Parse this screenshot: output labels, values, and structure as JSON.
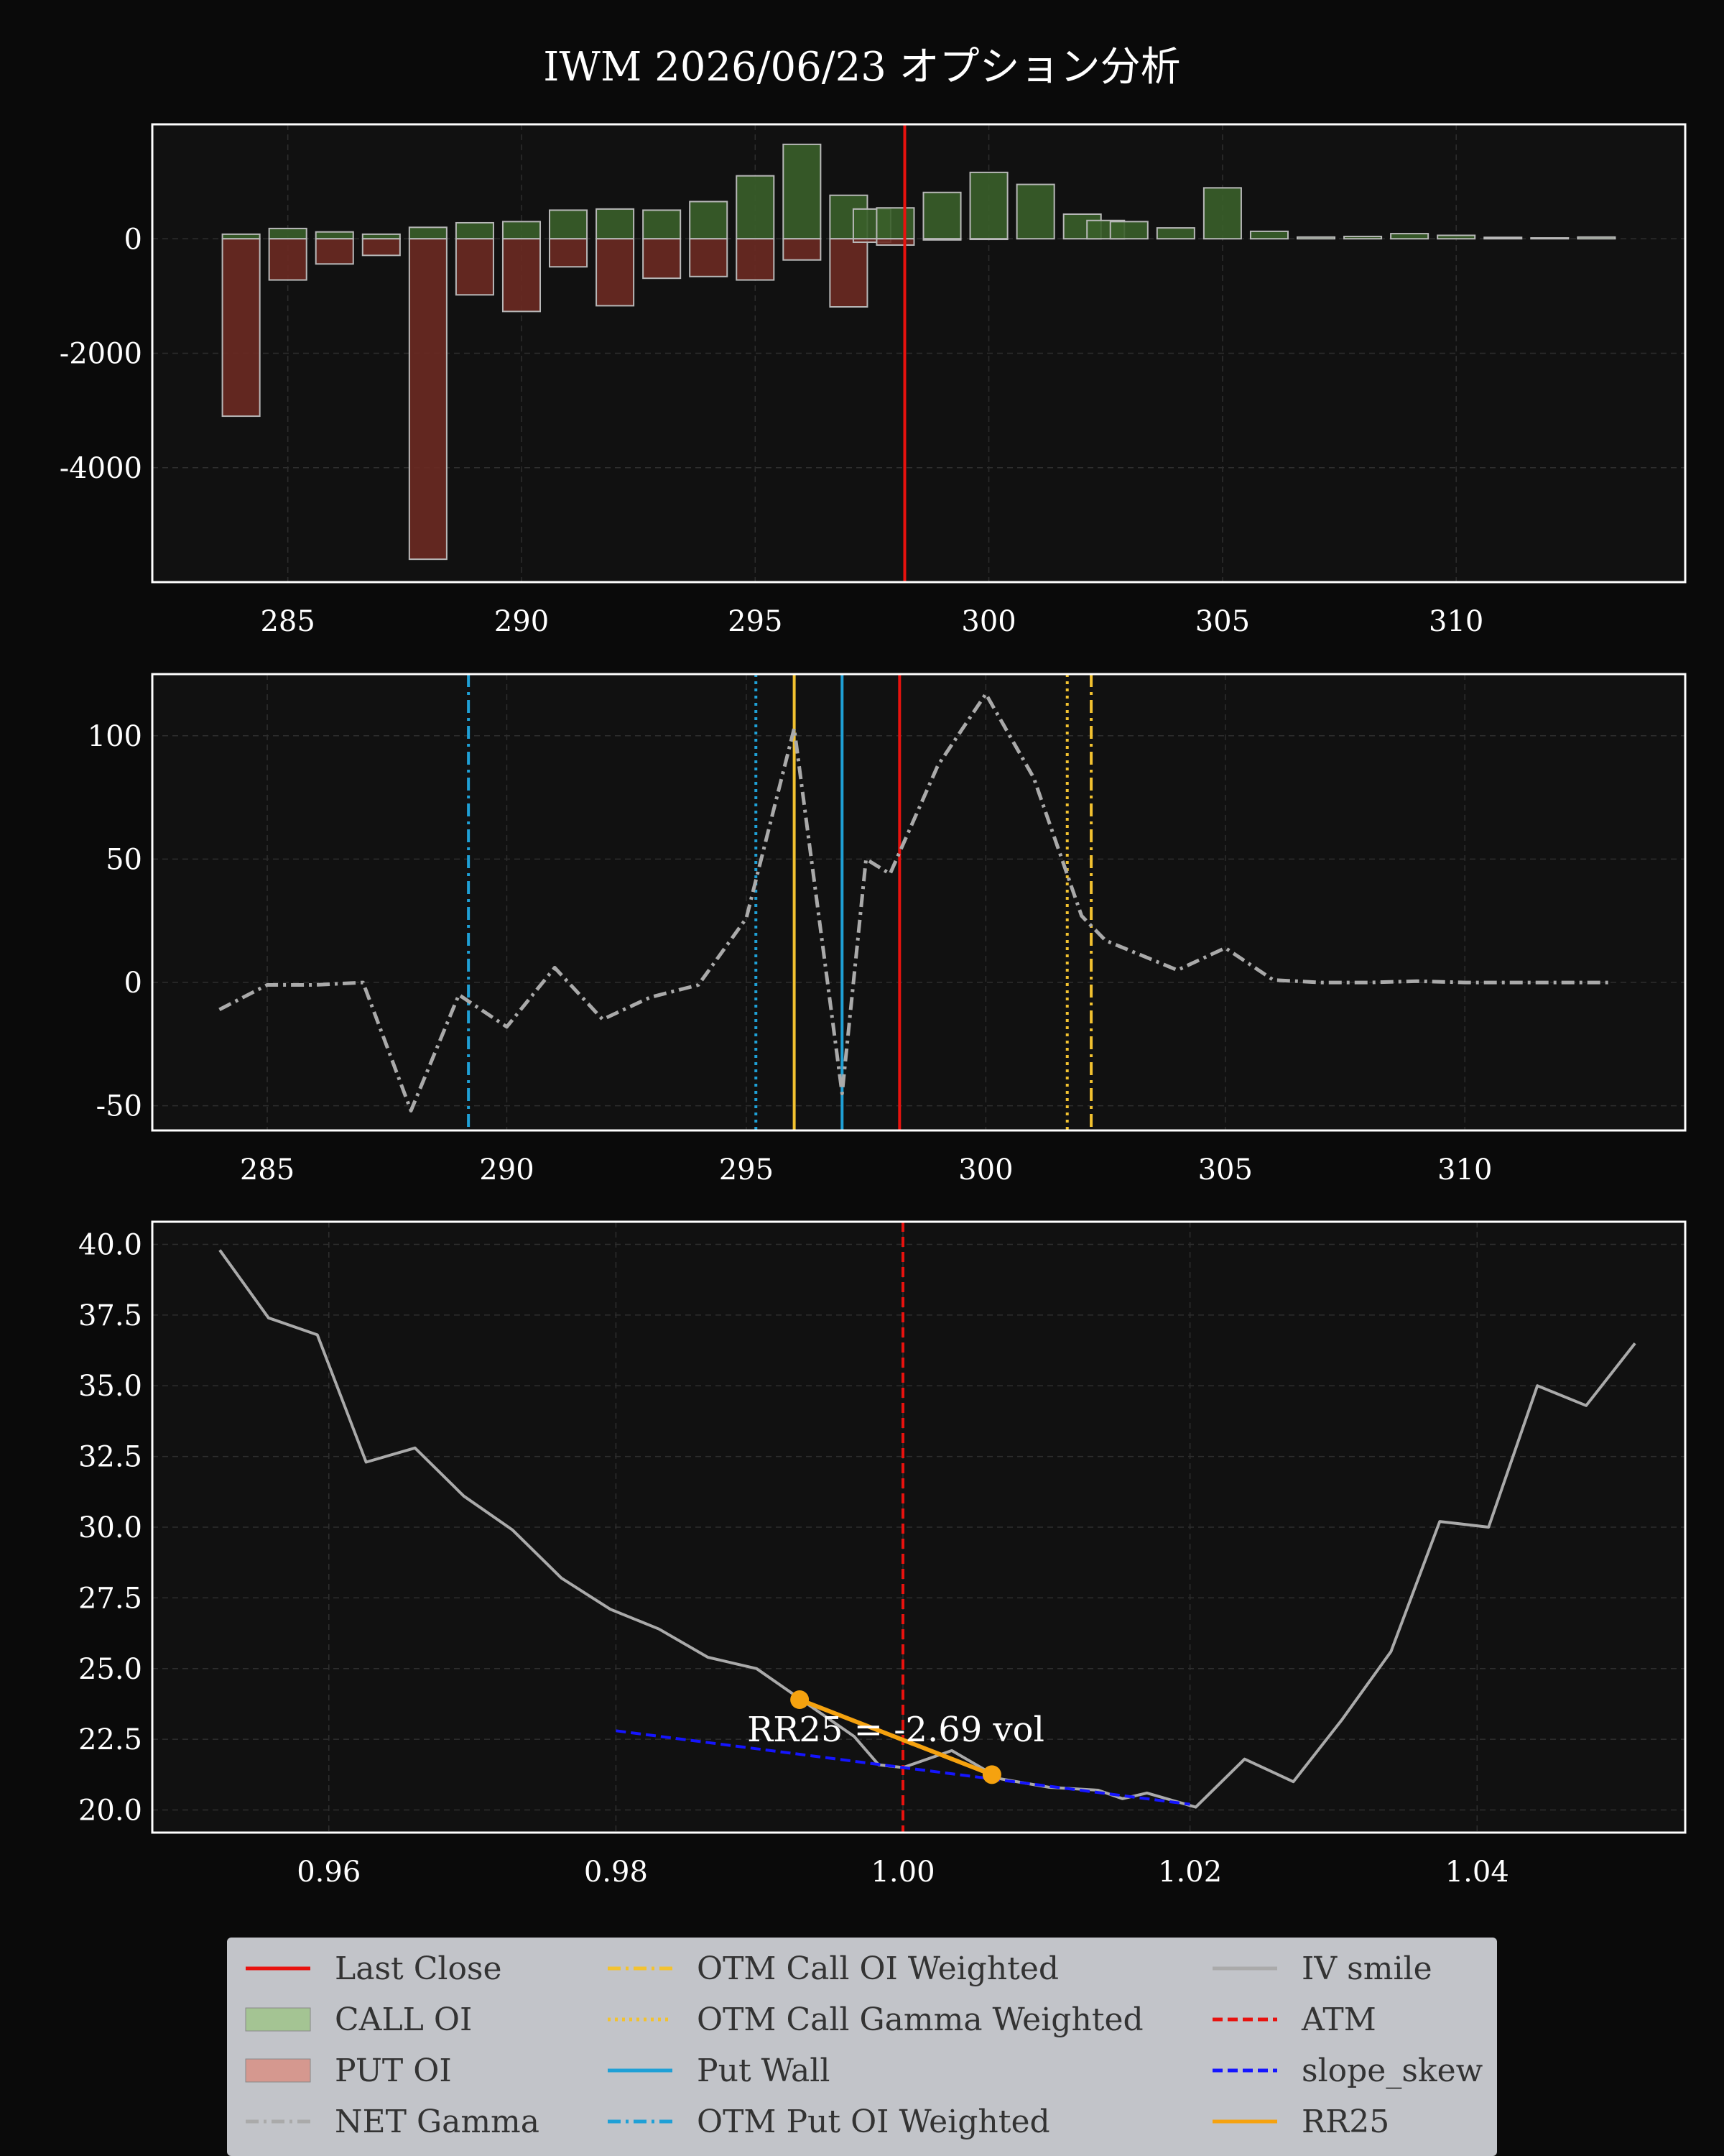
{
  "title": "IWM 2026/06/23 オプション分析",
  "colors": {
    "background": "#0a0a0a",
    "panel": "#111111",
    "call": "#3a5f2a",
    "put": "#6b2a22",
    "last_close": "#e8120e",
    "otm_call": "#f2c230",
    "put_wall": "#1fa0d6",
    "gamma": "#aaaaaa",
    "iv": "#aaaaaa",
    "atm": "#e8120e",
    "slope": "#1515ff",
    "rr25": "#f5a20f"
  },
  "legend": [
    {
      "label": "Last Close",
      "style": "solid",
      "color": "#e8120e"
    },
    {
      "label": "CALL OI",
      "style": "patch",
      "color": "#a4c493"
    },
    {
      "label": "PUT OI",
      "style": "patch",
      "color": "#d5988f"
    },
    {
      "label": "NET Gamma",
      "style": "dashdot",
      "color": "#aaaaaa"
    },
    {
      "label": "OTM Call OI Weighted",
      "style": "dashdot",
      "color": "#f2c230"
    },
    {
      "label": "OTM Call Gamma Weighted",
      "style": "dotted",
      "color": "#f2c230"
    },
    {
      "label": "Put Wall",
      "style": "solid",
      "color": "#1fa0d6"
    },
    {
      "label": "OTM Put OI Weighted",
      "style": "dashdot",
      "color": "#1fa0d6"
    },
    {
      "label": "IV smile",
      "style": "solid",
      "color": "#aaaaaa"
    },
    {
      "label": "ATM",
      "style": "dashed",
      "color": "#e8120e"
    },
    {
      "label": "slope_skew",
      "style": "dashed",
      "color": "#1515ff"
    },
    {
      "label": "RR25",
      "style": "solid",
      "color": "#f5a20f"
    }
  ],
  "chart_data": [
    {
      "type": "bar",
      "xlim": [
        282.1,
        314.9
      ],
      "ylim": [
        -6000,
        2000
      ],
      "xticks": [
        285,
        290,
        295,
        300,
        305,
        310
      ],
      "yticks": [
        0,
        -2000,
        -4000
      ],
      "grid": true,
      "last_close": 298.2,
      "strikes": [
        284,
        285,
        286,
        287,
        288,
        289,
        290,
        291,
        292,
        293,
        294,
        295,
        296,
        297,
        297.5,
        298,
        299,
        300,
        301,
        302,
        302.5,
        303,
        304,
        305,
        306,
        307,
        308,
        309,
        310,
        311,
        312,
        313
      ],
      "series": [
        {
          "name": "CALL OI",
          "values": [
            80,
            180,
            120,
            80,
            200,
            280,
            300,
            500,
            520,
            500,
            650,
            1100,
            1650,
            760,
            520,
            540,
            810,
            1160,
            950,
            430,
            320,
            300,
            190,
            890,
            130,
            30,
            40,
            90,
            60,
            25,
            15,
            30
          ]
        },
        {
          "name": "PUT OI",
          "values": [
            -3100,
            -720,
            -440,
            -290,
            -5600,
            -980,
            -1270,
            -490,
            -1170,
            -690,
            -660,
            -720,
            -370,
            -1190,
            -60,
            -110,
            -20,
            -10,
            0,
            0,
            0,
            0,
            0,
            0,
            0,
            0,
            0,
            0,
            0,
            0,
            0,
            0
          ]
        }
      ]
    },
    {
      "type": "line",
      "xlim": [
        282.6,
        314.6
      ],
      "ylim": [
        -60,
        125
      ],
      "xticks": [
        285,
        290,
        295,
        300,
        305,
        310
      ],
      "yticks": [
        100,
        50,
        0,
        -50
      ],
      "grid": true,
      "series": [
        {
          "name": "NET Gamma",
          "x": [
            284,
            285,
            286,
            287,
            288,
            289,
            290,
            291,
            292,
            293,
            294,
            295,
            296,
            297,
            297.5,
            298,
            299,
            300,
            301,
            302,
            302.5,
            303,
            304,
            305,
            306,
            307,
            308,
            309,
            310,
            311,
            312,
            313
          ],
          "y": [
            -11,
            -1,
            -1,
            0,
            -52,
            -5,
            -18,
            6,
            -15,
            -6,
            -1,
            26,
            103,
            -45,
            50,
            44,
            88,
            117,
            83,
            27,
            17,
            13,
            5,
            14,
            1,
            0,
            0,
            0.5,
            0,
            0,
            0,
            0
          ]
        }
      ],
      "vlines": [
        {
          "name": "OTM Put OI Weighted",
          "x": 289.2
        },
        {
          "name": "OTM Put Gamma Weighted",
          "x": 295.2
        },
        {
          "name": "OTM Call OI Weighted",
          "x": 296.0
        },
        {
          "name": "Put Wall",
          "x": 297.0
        },
        {
          "name": "Last Close",
          "x": 298.2
        },
        {
          "name": "OTM Call Gamma Weighted",
          "x": 301.7
        },
        {
          "name": "OTM Call OI Weighted",
          "x": 302.2
        }
      ]
    },
    {
      "type": "line",
      "xlim": [
        0.9477,
        1.0545
      ],
      "ylim": [
        19.2,
        40.8
      ],
      "xticks": [
        0.96,
        0.98,
        1.0,
        1.02,
        1.04
      ],
      "xtick_labels": [
        "0.96",
        "0.98",
        "1.00",
        "1.02",
        "1.04"
      ],
      "yticks": [
        40.0,
        37.5,
        35.0,
        32.5,
        30.0,
        27.5,
        25.0,
        22.5,
        20.0
      ],
      "ytick_labels": [
        "40.0",
        "37.5",
        "35.0",
        "32.5",
        "30.0",
        "27.5",
        "25.0",
        "22.5",
        "20.0"
      ],
      "grid": true,
      "series": [
        {
          "name": "IV smile",
          "x": [
            0.9524,
            0.9558,
            0.9592,
            0.9626,
            0.966,
            0.9694,
            0.9728,
            0.9762,
            0.9796,
            0.983,
            0.9864,
            0.9898,
            0.9932,
            0.9966,
            0.9983,
            1.0,
            1.0034,
            1.0068,
            1.0102,
            1.0136,
            1.0153,
            1.017,
            1.0204,
            1.0238,
            1.0272,
            1.0306,
            1.034,
            1.0374,
            1.0408,
            1.0442,
            1.0476,
            1.051
          ],
          "y": [
            39.8,
            37.4,
            36.8,
            32.3,
            32.8,
            31.1,
            29.9,
            28.2,
            27.1,
            26.4,
            25.4,
            25.0,
            23.8,
            22.6,
            21.6,
            21.5,
            22.1,
            21.1,
            20.8,
            20.7,
            20.4,
            20.6,
            20.1,
            21.8,
            21.0,
            23.2,
            25.6,
            30.2,
            30.0,
            35.0,
            34.3,
            36.5
          ]
        },
        {
          "name": "slope_skew",
          "x": [
            0.98,
            1.02
          ],
          "y": [
            22.8,
            20.2
          ]
        },
        {
          "name": "RR25",
          "x": [
            0.9928,
            1.0062
          ],
          "y": [
            23.9,
            21.25
          ]
        }
      ],
      "atm": 1.0,
      "annotation": "RR25 = -2.69 vol"
    }
  ]
}
